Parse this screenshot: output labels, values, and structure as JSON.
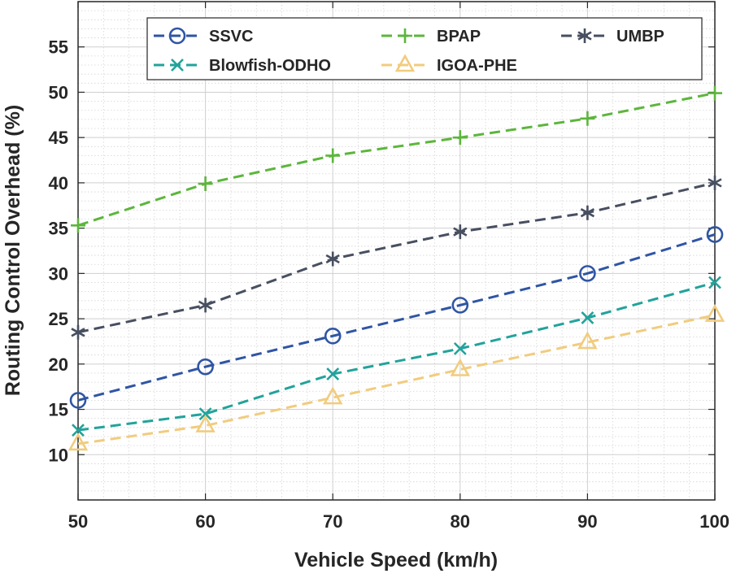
{
  "chart_data": {
    "type": "line",
    "title": "",
    "xlabel": "Vehicle Speed (km/h)",
    "ylabel": "Routing Control Overhead (%)",
    "xlim": [
      50,
      100
    ],
    "ylim": [
      5,
      60
    ],
    "grid": true,
    "minor_grid": true,
    "x_ticks": [
      50,
      60,
      70,
      80,
      90,
      100
    ],
    "y_ticks": [
      10,
      15,
      20,
      25,
      30,
      35,
      40,
      45,
      50,
      55
    ],
    "x_tick_labels": [
      "50",
      "60",
      "70",
      "80",
      "90",
      "100"
    ],
    "y_tick_labels": [
      "10",
      "15",
      "20",
      "25",
      "30",
      "35",
      "40",
      "45",
      "50",
      "55"
    ],
    "x": [
      50,
      60,
      70,
      80,
      90,
      100
    ],
    "legend_position": "top",
    "legend_columns": 3,
    "series": [
      {
        "name": "SSVC",
        "marker": "circle",
        "color": "#2f55a4",
        "values": [
          16.0,
          19.7,
          23.1,
          26.5,
          30.0,
          34.3
        ]
      },
      {
        "name": "BPAP",
        "marker": "plus",
        "color": "#5cb63c",
        "values": [
          35.3,
          39.9,
          43.0,
          45.0,
          47.1,
          49.9
        ]
      },
      {
        "name": "UMBP",
        "marker": "asterisk",
        "color": "#474f60",
        "values": [
          23.5,
          26.5,
          31.6,
          34.6,
          36.7,
          40.0
        ]
      },
      {
        "name": "Blowfish-ODHO",
        "marker": "x",
        "color": "#21a39b",
        "values": [
          12.7,
          14.5,
          18.9,
          21.7,
          25.1,
          29.0
        ]
      },
      {
        "name": "IGOA-PHE",
        "marker": "triangle",
        "color": "#f1cc7e",
        "values": [
          11.2,
          13.2,
          16.3,
          19.4,
          22.4,
          25.4
        ]
      }
    ]
  }
}
